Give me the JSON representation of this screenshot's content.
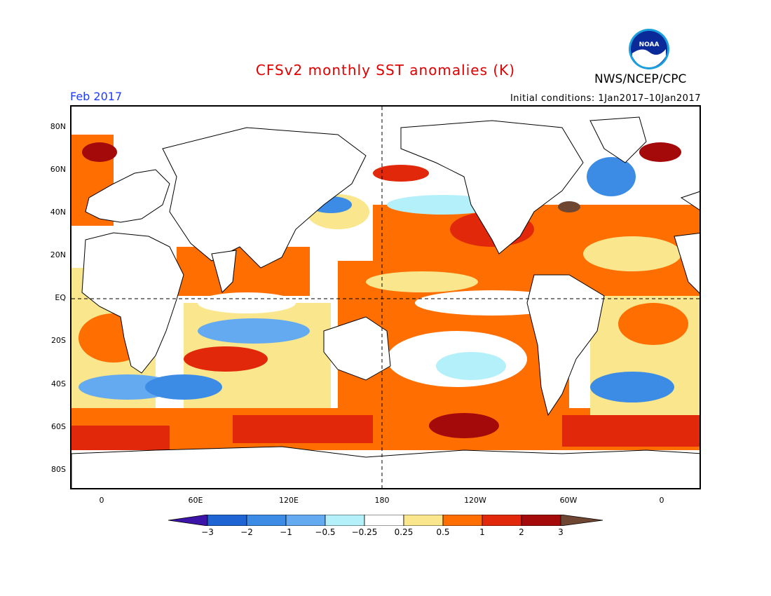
{
  "header": {
    "title": "CFSv2 monthly SST anomalies (K)",
    "organization": "NWS/NCEP/CPC",
    "logo_text": "NOAA",
    "month": "Feb 2017",
    "initial_conditions": "Initial conditions: 1Jan2017–10Jan2017"
  },
  "map": {
    "lat_ticks": [
      "80N",
      "60N",
      "40N",
      "20N",
      "EQ",
      "20S",
      "40S",
      "60S",
      "80S"
    ],
    "lon_ticks": [
      "0",
      "60E",
      "120E",
      "180",
      "120W",
      "60W",
      "0"
    ]
  },
  "colorbar": {
    "labels": [
      "−3",
      "−2",
      "−1",
      "−0.5",
      "−0.25",
      "0.25",
      "0.5",
      "1",
      "2",
      "3"
    ],
    "colors": [
      "#3c14a8",
      "#1e64d2",
      "#3c8ce6",
      "#64aaf0",
      "#b4f0fa",
      "#ffffff",
      "#fae68c",
      "#ff6e00",
      "#e1280a",
      "#a50a0a",
      "#6e4632"
    ]
  }
}
